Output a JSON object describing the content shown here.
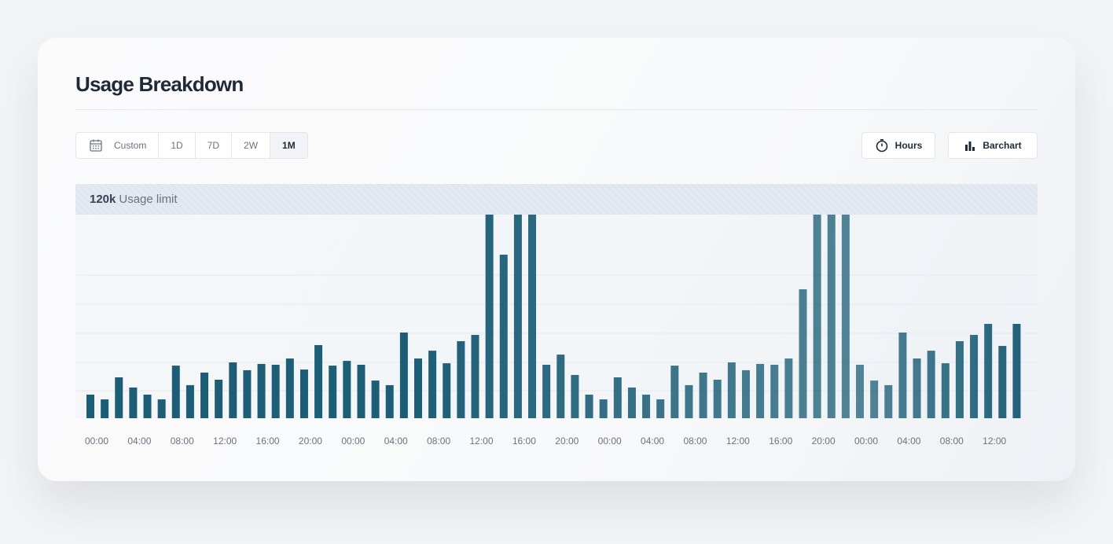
{
  "header": {
    "title": "Usage Breakdown"
  },
  "controls": {
    "ranges": [
      "Custom",
      "1D",
      "7D",
      "2W",
      "1M"
    ],
    "active": "1M",
    "options": [
      "Hours",
      "Barchart"
    ]
  },
  "chart_data": {
    "type": "bar",
    "color": "#1d5e76",
    "limit": {
      "value": 120,
      "label": "120k",
      "text": "Usage limit"
    },
    "ylim": [
      0,
      120
    ],
    "categories": [
      "00:00",
      null,
      null,
      "04:00",
      null,
      null,
      "08:00",
      null,
      null,
      "12:00",
      null,
      null,
      "16:00",
      null,
      null,
      "20:00",
      null,
      null,
      "00:00",
      null,
      null,
      "04:00",
      null,
      null,
      "08:00",
      null,
      null,
      "12:00",
      null,
      null,
      "16:00",
      null,
      null,
      "20:00",
      null,
      null,
      "00:00",
      null,
      null,
      "04:00",
      null,
      null,
      "08:00",
      null,
      null,
      "12:00",
      null,
      null,
      "16:00",
      null,
      null,
      "20:00",
      null,
      null,
      "00:00",
      null,
      null,
      "04:00",
      null,
      null,
      "08:00",
      null,
      null,
      "12:00",
      null,
      null
    ],
    "values": [
      13.9,
      11.1,
      24.1,
      18.1,
      13.9,
      11.1,
      31.0,
      19.5,
      26.9,
      22.7,
      32.9,
      28.3,
      32.0,
      31.5,
      35.2,
      28.7,
      43.1,
      31.0,
      33.8,
      31.5,
      22.2,
      19.5,
      50.5,
      35.2,
      39.8,
      32.4,
      45.4,
      49.1,
      125,
      96.4,
      125,
      125,
      31.5,
      37.5,
      25.5,
      13.9,
      11.1,
      24.1,
      18.1,
      13.9,
      11.1,
      31.0,
      19.5,
      26.9,
      22.7,
      32.9,
      28.3,
      32.0,
      31.5,
      35.2,
      76.0,
      125,
      125,
      125,
      31.5,
      22.2,
      19.5,
      50.5,
      35.2,
      39.8,
      32.4,
      45.4,
      49.1,
      55.6,
      42.6,
      55.6
    ]
  }
}
